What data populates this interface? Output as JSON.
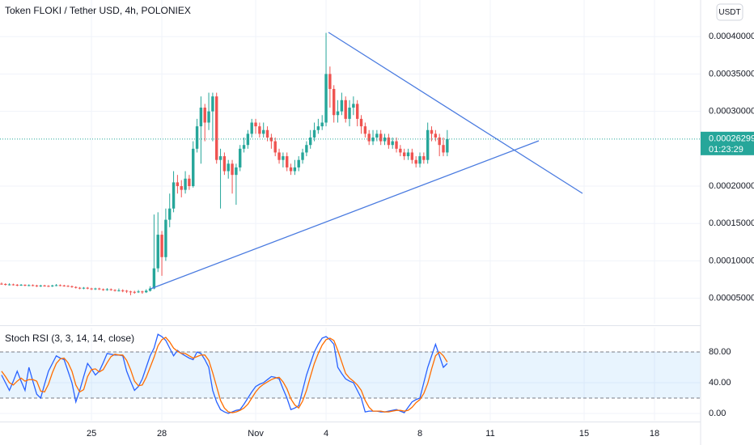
{
  "header": {
    "title": "Token FLOKI / Tether USD, 4h, POLONIEX",
    "currency": "USDT"
  },
  "chart_data": [
    {
      "type": "candlestick",
      "up_color": "#26a69a",
      "down_color": "#ef5350",
      "xlim": [
        -0.4,
        178.8
      ],
      "xticks": [
        {
          "value": 23,
          "label": "25"
        },
        {
          "value": 41,
          "label": "28"
        },
        {
          "value": 65,
          "label": "Nov"
        },
        {
          "value": 83,
          "label": "4"
        },
        {
          "value": 107,
          "label": "8"
        },
        {
          "value": 125,
          "label": "11"
        },
        {
          "value": 149,
          "label": "15"
        },
        {
          "value": 167,
          "label": "18"
        }
      ],
      "ylim": [
        1.6e-05,
        0.000449
      ],
      "yticks": [
        {
          "value": 5e-05,
          "label": "0.00005000"
        },
        {
          "value": 0.0001,
          "label": "0.00010000"
        },
        {
          "value": 0.00015,
          "label": "0.00015000"
        },
        {
          "value": 0.0002,
          "label": "0.00020000"
        },
        {
          "value": 0.0003,
          "label": "0.00030000"
        },
        {
          "value": 0.00035,
          "label": "0.00035000"
        },
        {
          "value": 0.0004,
          "label": "0.00040000"
        }
      ],
      "last_label": "0.00026299",
      "countdown": "01:23:29",
      "open": [
        6.95e-05,
        6.9e-05,
        6.8e-05,
        6.85e-05,
        6.8e-05,
        6.75e-05,
        6.8e-05,
        6.7e-05,
        6.75e-05,
        6.7e-05,
        6.6e-05,
        6.7e-05,
        6.65e-05,
        6.6e-05,
        6.7e-05,
        6.75e-05,
        6.7e-05,
        6.65e-05,
        6.6e-05,
        6.5e-05,
        6.4e-05,
        6.3e-05,
        6.4e-05,
        6.3e-05,
        6.2e-05,
        6.3e-05,
        6.2e-05,
        6.15e-05,
        6.2e-05,
        6.1e-05,
        6e-05,
        6.05e-05,
        6e-05,
        5.9e-05,
        5.85e-05,
        5.8e-05,
        5.9e-05,
        5.8e-05,
        6e-05,
        6.3e-05,
        9e-05,
        0.000135,
        0.000105,
        0.000155,
        0.00017,
        0.000205,
        0.0002,
        0.000195,
        0.00021,
        0.0002,
        0.00025,
        0.00028,
        0.000305,
        0.000285,
        0.0003,
        0.00032,
        0.000235,
        0.00024,
        0.00022,
        0.00023,
        0.000215,
        0.000225,
        0.00025,
        0.000255,
        0.00027,
        0.000285,
        0.00028,
        0.00027,
        0.000275,
        0.000265,
        0.00026,
        0.000245,
        0.000235,
        0.00024,
        0.000225,
        0.00022,
        0.000225,
        0.000235,
        0.000245,
        0.000255,
        0.000265,
        0.000275,
        0.00028,
        0.000285,
        0.00035,
        0.00033,
        0.000295,
        0.0003,
        0.000315,
        0.00029,
        0.000305,
        0.00031,
        0.00029,
        0.00028,
        0.00027,
        0.00026,
        0.000265,
        0.00027,
        0.00026,
        0.000265,
        0.000255,
        0.00026,
        0.00025,
        0.000245,
        0.00024,
        0.000245,
        0.000235,
        0.00023,
        0.00024,
        0.000235,
        0.000275,
        0.00027,
        0.000265,
        0.000255,
        0.000245
      ],
      "high": [
        7.1e-05,
        7e-05,
        7e-05,
        6.95e-05,
        6.9e-05,
        6.9e-05,
        6.85e-05,
        6.85e-05,
        6.85e-05,
        6.8e-05,
        6.8e-05,
        6.8e-05,
        6.75e-05,
        6.8e-05,
        6.9e-05,
        6.85e-05,
        6.8e-05,
        6.75e-05,
        6.7e-05,
        6.6e-05,
        6.5e-05,
        6.5e-05,
        6.5e-05,
        6.4e-05,
        6.4e-05,
        6.4e-05,
        6.3e-05,
        6.35e-05,
        6.3e-05,
        6.2e-05,
        6.3e-05,
        6.2e-05,
        6.1e-05,
        6e-05,
        6e-05,
        6.1e-05,
        6e-05,
        6.2e-05,
        6.6e-05,
        0.000162,
        0.000165,
        0.00014,
        0.00017,
        0.00019,
        0.00022,
        0.000215,
        0.000208,
        0.00022,
        0.000215,
        0.00026,
        0.00029,
        0.00032,
        0.00031,
        0.000325,
        0.000325,
        0.000325,
        0.00025,
        0.000245,
        0.000235,
        0.000235,
        0.00023,
        0.000255,
        0.000265,
        0.000275,
        0.00029,
        0.00029,
        0.000285,
        0.000285,
        0.00028,
        0.00027,
        0.000265,
        0.00025,
        0.000245,
        0.000245,
        0.00023,
        0.000235,
        0.00024,
        0.00025,
        0.00026,
        0.000275,
        0.000285,
        0.00029,
        0.000295,
        0.000405,
        0.00036,
        0.000335,
        0.000315,
        0.000325,
        0.00032,
        0.000315,
        0.00032,
        0.000315,
        0.000295,
        0.000285,
        0.000275,
        0.000275,
        0.000275,
        0.000275,
        0.00027,
        0.00027,
        0.000265,
        0.000265,
        0.000255,
        0.00025,
        0.00025,
        0.00025,
        0.00024,
        0.000245,
        0.000245,
        0.000285,
        0.00028,
        0.000275,
        0.00027,
        0.000265,
        0.000275
      ],
      "low": [
        6.8e-05,
        6.7e-05,
        6.7e-05,
        6.7e-05,
        6.6e-05,
        6.65e-05,
        6.6e-05,
        6.6e-05,
        6.6e-05,
        6.5e-05,
        6.5e-05,
        6.55e-05,
        6.5e-05,
        6.5e-05,
        6.6e-05,
        6.6e-05,
        6.55e-05,
        6.5e-05,
        6.4e-05,
        6.3e-05,
        6.2e-05,
        6.2e-05,
        6.2e-05,
        6.1e-05,
        6.1e-05,
        6.1e-05,
        6e-05,
        6e-05,
        6e-05,
        5.9e-05,
        5.9e-05,
        5.8e-05,
        5.7e-05,
        5.4e-05,
        5.6e-05,
        5.7e-05,
        5.6e-05,
        5.7e-05,
        5.9e-05,
        6.2e-05,
        8.5e-05,
        8e-05,
        0.0001,
        0.000145,
        0.000165,
        0.00019,
        0.000185,
        0.00019,
        0.000195,
        0.000198,
        0.000245,
        0.00023,
        0.00026,
        0.000275,
        0.00026,
        0.00023,
        0.00017,
        0.000215,
        0.00021,
        0.00019,
        0.000175,
        0.00022,
        0.000245,
        0.00025,
        0.000265,
        0.00027,
        0.000265,
        0.000265,
        0.00026,
        0.00025,
        0.00024,
        0.00023,
        0.000225,
        0.00022,
        0.000215,
        0.000215,
        0.00022,
        0.00023,
        0.00024,
        0.00025,
        0.00026,
        0.00027,
        0.000275,
        0.00028,
        0.000305,
        0.000285,
        0.000285,
        0.000295,
        0.000285,
        0.00028,
        0.000295,
        0.00028,
        0.00027,
        0.000265,
        0.000255,
        0.000255,
        0.00026,
        0.000255,
        0.000255,
        0.00025,
        0.00025,
        0.000245,
        0.00024,
        0.000235,
        0.000235,
        0.00023,
        0.000225,
        0.000225,
        0.00023,
        0.00023,
        0.00026,
        0.00026,
        0.00024,
        0.00024,
        0.00024
      ],
      "close": [
        6.9e-05,
        6.8e-05,
        6.85e-05,
        6.8e-05,
        6.75e-05,
        6.8e-05,
        6.7e-05,
        6.75e-05,
        6.7e-05,
        6.6e-05,
        6.7e-05,
        6.65e-05,
        6.6e-05,
        6.7e-05,
        6.75e-05,
        6.7e-05,
        6.65e-05,
        6.6e-05,
        6.5e-05,
        6.4e-05,
        6.3e-05,
        6.4e-05,
        6.3e-05,
        6.2e-05,
        6.3e-05,
        6.2e-05,
        6.15e-05,
        6.2e-05,
        6.1e-05,
        6e-05,
        6.05e-05,
        6e-05,
        5.9e-05,
        5.85e-05,
        5.8e-05,
        5.9e-05,
        5.8e-05,
        6e-05,
        6.3e-05,
        9e-05,
        0.000135,
        0.000105,
        0.000155,
        0.00017,
        0.000205,
        0.0002,
        0.000195,
        0.00021,
        0.0002,
        0.00025,
        0.00028,
        0.000305,
        0.000285,
        0.0003,
        0.00032,
        0.000235,
        0.00024,
        0.00022,
        0.00023,
        0.000215,
        0.000225,
        0.00025,
        0.000255,
        0.00027,
        0.000285,
        0.00028,
        0.00027,
        0.000275,
        0.000265,
        0.00026,
        0.000245,
        0.000235,
        0.00024,
        0.000225,
        0.00022,
        0.000225,
        0.000235,
        0.000245,
        0.000255,
        0.000265,
        0.000275,
        0.00028,
        0.000285,
        0.00035,
        0.00033,
        0.000295,
        0.0003,
        0.000315,
        0.00029,
        0.000305,
        0.00031,
        0.00029,
        0.00028,
        0.00027,
        0.00026,
        0.000265,
        0.00027,
        0.00026,
        0.000265,
        0.000255,
        0.00026,
        0.00025,
        0.000245,
        0.00024,
        0.000245,
        0.000235,
        0.00023,
        0.00024,
        0.000235,
        0.000275,
        0.00027,
        0.000265,
        0.000255,
        0.000245,
        0.00026299
      ]
    },
    {
      "type": "line",
      "title": "Stoch RSI (3, 3, 14, 14, close)",
      "xlim": [
        -0.4,
        178.8
      ],
      "ylim": [
        -9.5,
        111.6
      ],
      "yticks": [
        {
          "value": 0,
          "label": "0.00"
        },
        {
          "value": 40,
          "label": "40.00"
        },
        {
          "value": 80,
          "label": "80.00"
        }
      ],
      "band": [
        20,
        80
      ],
      "series": [
        {
          "color": "#2962ff",
          "values": [
            50,
            40,
            30,
            42,
            55,
            42,
            30,
            60,
            42,
            25,
            20,
            38,
            55,
            65,
            75,
            72,
            70,
            55,
            40,
            15,
            30,
            48,
            65,
            58,
            50,
            55,
            66,
            78,
            77,
            76,
            76,
            75,
            55,
            42,
            30,
            35,
            45,
            60,
            75,
            85,
            103,
            100,
            95,
            85,
            75,
            82,
            78,
            75,
            72,
            70,
            80,
            78,
            70,
            60,
            30,
            15,
            5,
            2,
            0,
            2,
            4,
            5,
            12,
            20,
            28,
            35,
            38,
            40,
            44,
            48,
            47,
            45,
            32,
            20,
            5,
            7,
            10,
            30,
            50,
            65,
            80,
            90,
            98,
            100,
            96,
            90,
            60,
            52,
            45,
            42,
            40,
            30,
            20,
            2,
            3,
            3,
            3,
            2,
            2,
            3,
            4,
            5,
            3,
            1,
            8,
            15,
            18,
            20,
            40,
            60,
            75,
            90,
            75,
            60,
            65
          ]
        },
        {
          "color": "#ff6d00",
          "values": [
            55,
            48,
            40,
            37,
            42,
            46,
            42,
            44,
            44,
            42,
            29,
            28,
            38,
            53,
            65,
            71,
            72,
            66,
            55,
            37,
            28,
            31,
            48,
            57,
            58,
            54,
            57,
            66,
            74,
            77,
            76,
            76,
            69,
            57,
            42,
            36,
            37,
            47,
            60,
            73,
            88,
            96,
            99,
            93,
            85,
            81,
            78,
            78,
            75,
            72,
            74,
            76,
            76,
            69,
            53,
            35,
            17,
            7,
            2,
            1,
            2,
            4,
            7,
            12,
            20,
            28,
            34,
            38,
            41,
            44,
            46,
            47,
            41,
            32,
            19,
            11,
            7,
            16,
            30,
            48,
            65,
            78,
            89,
            96,
            98,
            95,
            82,
            67,
            52,
            46,
            42,
            37,
            30,
            17,
            8,
            3,
            3,
            3,
            2,
            2,
            3,
            4,
            4,
            3,
            4,
            8,
            14,
            18,
            26,
            39,
            58,
            75,
            80,
            75,
            67
          ]
        }
      ]
    }
  ]
}
